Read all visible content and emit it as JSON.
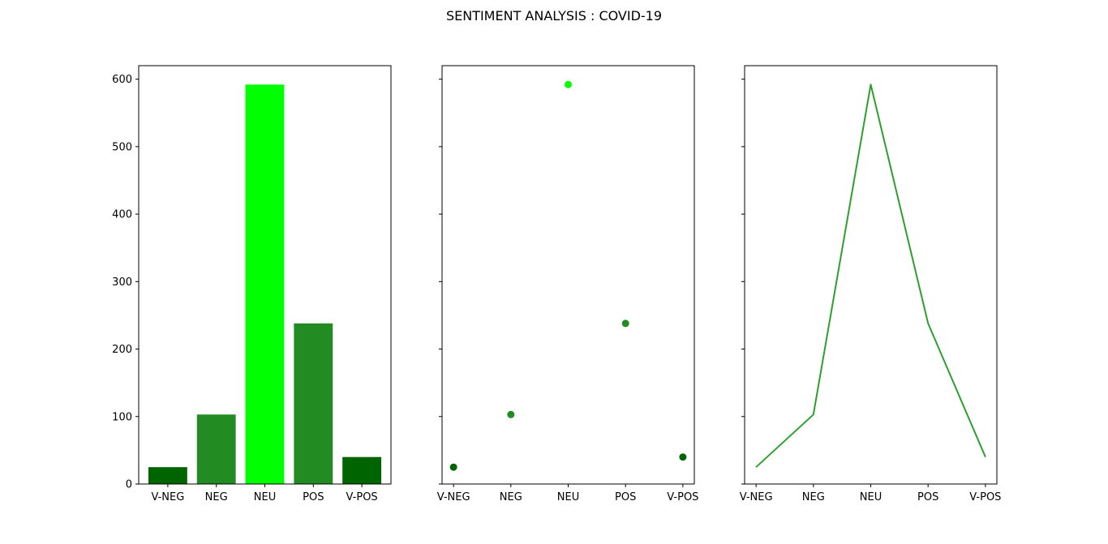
{
  "chart_data": {
    "title": "SENTIMENT ANALYSIS : COVID-19",
    "categories": [
      "V-NEG",
      "NEG",
      "NEU",
      "POS",
      "V-POS"
    ],
    "values": [
      25,
      103,
      592,
      238,
      40
    ],
    "ylim": [
      0,
      620
    ],
    "yticks": [
      "0",
      "100",
      "200",
      "300",
      "400",
      "500",
      "600"
    ],
    "grid": false,
    "colors": {
      "category": [
        "#006400",
        "#228b22",
        "#00ff00",
        "#228b22",
        "#006400"
      ],
      "line": "#2ca02c",
      "axes": "#000000"
    },
    "subplots": [
      {
        "type": "bar"
      },
      {
        "type": "scatter"
      },
      {
        "type": "line"
      }
    ]
  }
}
